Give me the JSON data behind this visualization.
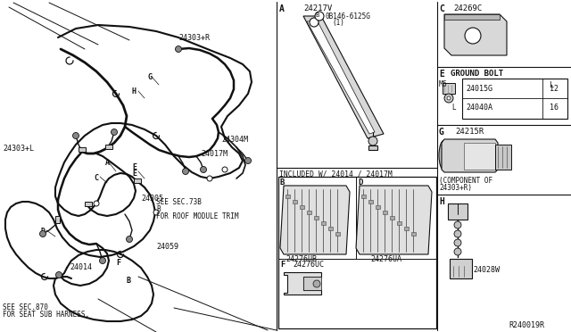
{
  "bg_color": "#ffffff",
  "line_color": "#111111",
  "gray_fill": "#cccccc",
  "light_gray": "#e8e8e8",
  "part_numbers": {
    "main_harness": "24017M",
    "p24303L": "24303+L",
    "p24303R": "24303+R",
    "p24304M": "24304M",
    "p24305": "24305",
    "p24014": "24014",
    "p24059": "24059",
    "p24217V": "24217V",
    "p0B146": "0B146-6125G",
    "p0B146_1": "(1)",
    "p24269C": "24269C",
    "p24015G": "24015G",
    "p24040A": "24040A",
    "p24215R": "24215R",
    "p24028W": "24028W",
    "p24276UB": "24276UB",
    "p24276UA": "24276UA",
    "p24276UC": "24276UC",
    "ground_bolt": "GROUND BOLT",
    "component_of": "(COMPONENT OF",
    "component_of2": "24303+R)",
    "included": "INCLUDED W/ 24014 / 24017M",
    "see_sec738": "SEE SEC.73B",
    "see_sec738b": "B",
    "for_roof": "FOR ROOF MODULE TRIM",
    "see_sec870": "SEE SEC.870",
    "for_seat": "FOR SEAT SUB HARNESS.",
    "ref_code": "R240019R",
    "M6": "M6",
    "L_label": "L",
    "len12": "12",
    "len16": "16",
    "E_label": "E",
    "F_label": "F"
  }
}
